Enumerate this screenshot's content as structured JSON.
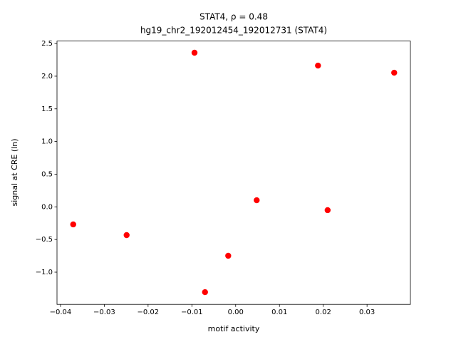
{
  "chart_data": {
    "type": "scatter",
    "title": "STAT4, ρ = 0.48",
    "subtitle": "hg19_chr2_192012454_192012731 (STAT4)",
    "x_label": "motif activity",
    "y_label": "signal at CRE (ln)",
    "color": "#ff0000",
    "series": [
      {
        "x": [
          -0.0371,
          -0.0249,
          -0.0094,
          -0.007,
          -0.0017,
          0.0048,
          0.0188,
          0.021,
          0.0362
        ],
        "values": [
          -0.269,
          -0.433,
          2.359,
          -1.306,
          -0.749,
          0.101,
          2.162,
          -0.051,
          2.053
        ]
      }
    ],
    "xlim": [
      -0.0408,
      0.0399
    ],
    "ylim": [
      -1.493,
      2.538
    ],
    "xticks": [
      {
        "value": -0.04,
        "label": "−0.04"
      },
      {
        "value": -0.03,
        "label": "−0.03"
      },
      {
        "value": -0.02,
        "label": "−0.02"
      },
      {
        "value": -0.01,
        "label": "−0.01"
      },
      {
        "value": 0,
        "label": "0.00"
      },
      0.01,
      0.02,
      0.03
    ],
    "yticks": [
      {
        "value": -1,
        "label": "−1.0"
      },
      {
        "value": -0.5,
        "label": "−0.5"
      },
      {
        "value": 0,
        "label": "0.0"
      },
      0.5,
      {
        "value": 1,
        "label": "1.0"
      },
      1.5,
      {
        "value": 2,
        "label": "2.0"
      },
      2.5
    ]
  }
}
